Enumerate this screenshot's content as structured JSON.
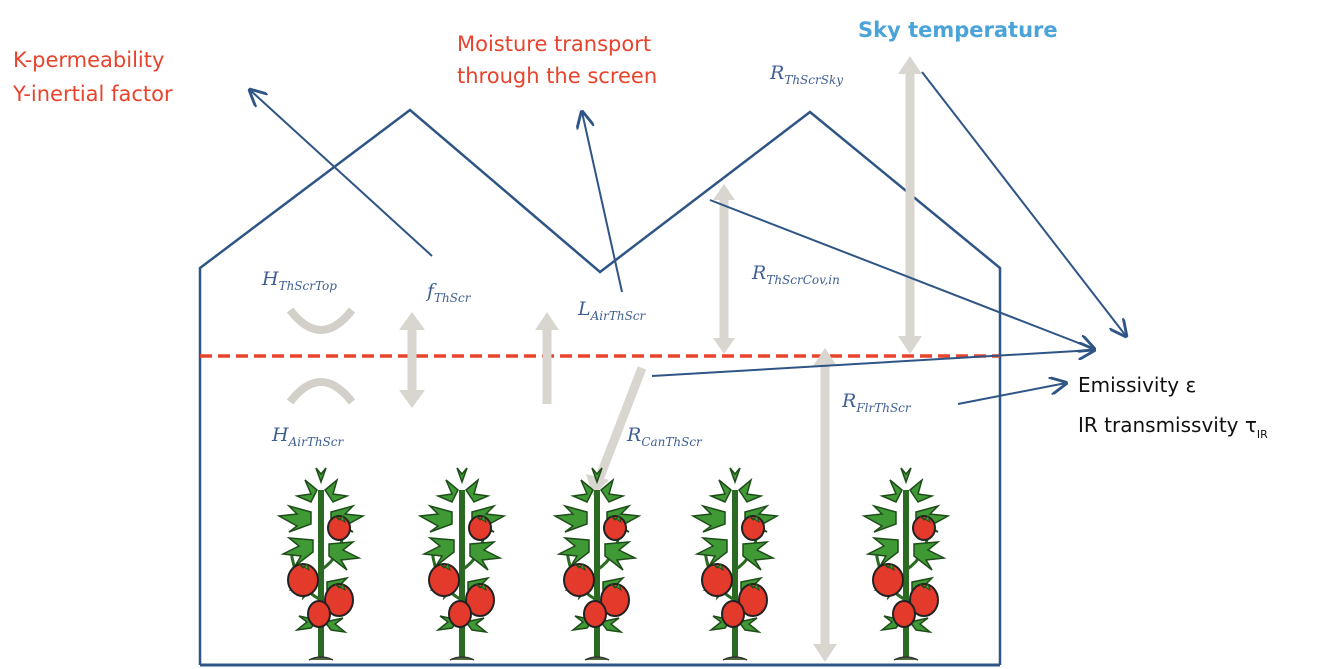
{
  "labels": {
    "k_permeability": "K-permeability",
    "y_inertial": "Y-inertial factor",
    "moisture_line1": "Moisture transport",
    "moisture_line2": "through the screen",
    "sky_temperature": "Sky temperature",
    "emissivity": "Emissivity ε",
    "ir_transmissivity": "IR transmissvity τ",
    "ir_sub": "IR"
  },
  "variables": {
    "r_thscrsky": {
      "symbol": "R",
      "sub": "ThScrSky"
    },
    "h_thscrtop": {
      "symbol": "H",
      "sub": "ThScrTop"
    },
    "f_thscr": {
      "symbol": "f",
      "sub": "ThScr"
    },
    "l_airthscr": {
      "symbol": "L",
      "sub": "AirThScr"
    },
    "r_thscrcovin": {
      "symbol": "R",
      "sub": "ThScrCov,in"
    },
    "h_airthscr": {
      "symbol": "H",
      "sub": "AirThScr"
    },
    "r_canthscr": {
      "symbol": "R",
      "sub": "CanThScr"
    },
    "r_flrthscr": {
      "symbol": "R",
      "sub": "FlrThScr"
    }
  },
  "colors": {
    "structure": "#2e5585",
    "screen": "#e8432c",
    "flux_arrow": "#d9d6d0",
    "leaf": "#3f9a35",
    "fruit": "#e33a2c",
    "sky_text": "#4aa3d9"
  },
  "icons": [
    "tomato-plant-icon",
    "heat-exchange-icon",
    "vertical-flux-arrow-icon"
  ]
}
